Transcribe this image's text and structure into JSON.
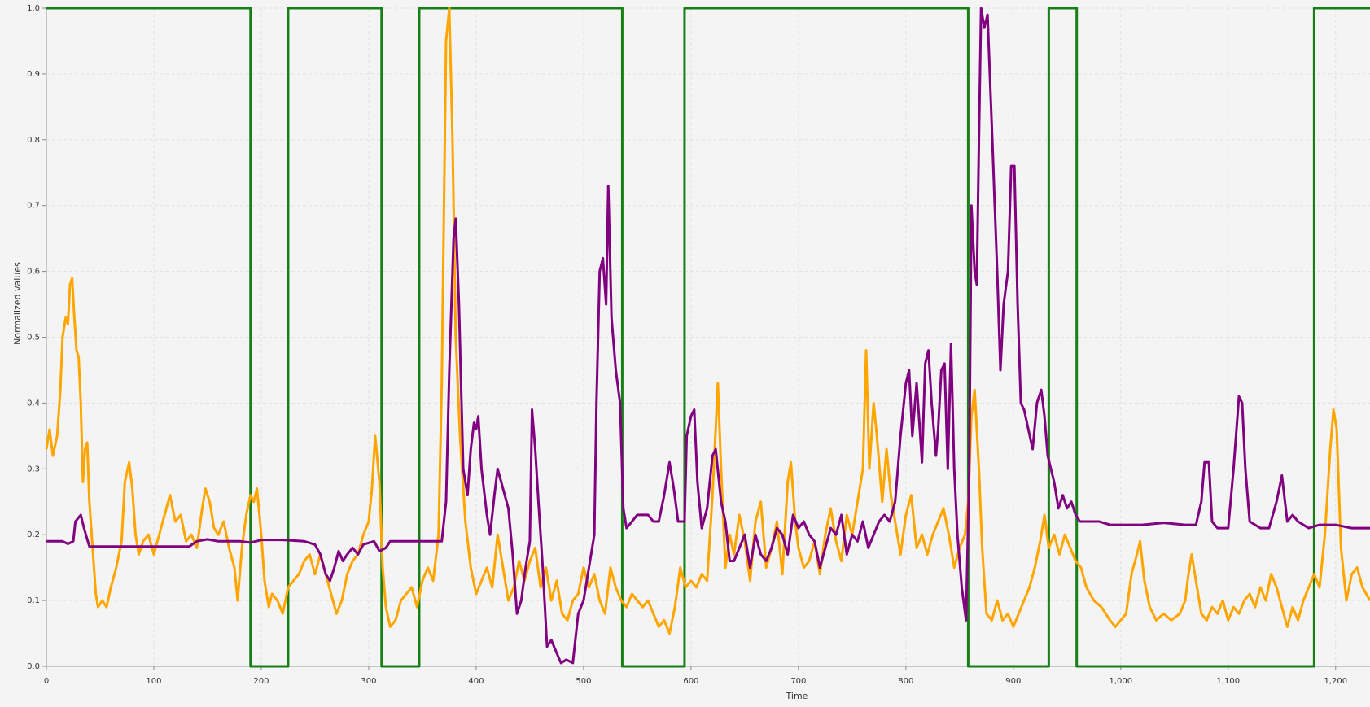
{
  "chart_data": {
    "type": "line",
    "xlabel": "Time",
    "ylabel": "Normalized values",
    "xlim": [
      0,
      1232
    ],
    "ylim": [
      0,
      1
    ],
    "xticks": [
      0,
      100,
      200,
      300,
      400,
      500,
      600,
      700,
      800,
      900,
      {
        "value": 1000,
        "label": "1,000"
      },
      {
        "value": 1100,
        "label": "1,100"
      },
      {
        "value": 1200,
        "label": "1,200"
      }
    ],
    "yticks": [
      {
        "value": 0,
        "label": "0.0"
      },
      0.1,
      0.2,
      0.3,
      0.4,
      0.5,
      0.6,
      0.7,
      0.8,
      0.9,
      {
        "value": 1,
        "label": "1.0"
      }
    ],
    "grid": true,
    "series": [
      {
        "color": "#168016",
        "x": [
          0,
          190,
          190,
          225,
          225,
          312,
          312,
          347,
          347,
          536,
          536,
          594,
          594,
          858,
          858,
          933,
          933,
          959,
          959,
          1180,
          1180,
          1232
        ],
        "values": [
          1,
          1,
          0,
          0,
          1,
          1,
          0,
          0,
          1,
          1,
          0,
          0,
          1,
          1,
          0,
          0,
          1,
          1,
          0,
          0,
          1,
          1
        ]
      },
      {
        "color": "#ffa500",
        "x": [
          0,
          3,
          6,
          10,
          13,
          15,
          18,
          20,
          22,
          24,
          26,
          28,
          30,
          32,
          34,
          36,
          38,
          40,
          43,
          46,
          48,
          52,
          56,
          60,
          65,
          70,
          73,
          77,
          80,
          83,
          86,
          90,
          95,
          100,
          105,
          110,
          115,
          120,
          125,
          130,
          135,
          140,
          145,
          148,
          152,
          156,
          160,
          165,
          170,
          175,
          178,
          182,
          186,
          190,
          193,
          196,
          200,
          203,
          207,
          210,
          215,
          220,
          225,
          230,
          235,
          240,
          245,
          250,
          255,
          260,
          265,
          270,
          275,
          280,
          285,
          290,
          295,
          300,
          303,
          306,
          310,
          313,
          316,
          320,
          325,
          330,
          335,
          340,
          345,
          350,
          355,
          360,
          365,
          368,
          372,
          375,
          378,
          381,
          385,
          390,
          395,
          400,
          405,
          410,
          415,
          420,
          425,
          430,
          435,
          440,
          445,
          450,
          455,
          460,
          465,
          470,
          475,
          480,
          485,
          490,
          495,
          500,
          505,
          510,
          515,
          520,
          525,
          530,
          535,
          540,
          545,
          550,
          555,
          560,
          565,
          570,
          575,
          580,
          585,
          590,
          595,
          600,
          605,
          610,
          615,
          620,
          625,
          628,
          632,
          636,
          640,
          645,
          650,
          655,
          660,
          665,
          670,
          675,
          680,
          685,
          690,
          693,
          697,
          700,
          705,
          710,
          715,
          720,
          725,
          730,
          735,
          740,
          745,
          750,
          755,
          760,
          763,
          766,
          770,
          773,
          778,
          782,
          786,
          790,
          795,
          800,
          805,
          810,
          815,
          820,
          825,
          830,
          835,
          840,
          845,
          850,
          855,
          858,
          861,
          864,
          868,
          871,
          875,
          880,
          885,
          890,
          895,
          900,
          905,
          910,
          915,
          920,
          925,
          929,
          933,
          938,
          943,
          948,
          953,
          958,
          963,
          968,
          975,
          982,
          990,
          995,
          1000,
          1005,
          1010,
          1015,
          1018,
          1022,
          1027,
          1033,
          1040,
          1047,
          1055,
          1060,
          1063,
          1066,
          1070,
          1075,
          1080,
          1085,
          1090,
          1095,
          1100,
          1105,
          1110,
          1115,
          1120,
          1125,
          1130,
          1135,
          1140,
          1145,
          1150,
          1155,
          1160,
          1165,
          1170,
          1175,
          1180,
          1185,
          1190,
          1195,
          1198,
          1201,
          1205,
          1210,
          1215,
          1220,
          1225,
          1232
        ],
        "values": [
          0.33,
          0.36,
          0.32,
          0.35,
          0.42,
          0.5,
          0.53,
          0.52,
          0.58,
          0.59,
          0.53,
          0.48,
          0.47,
          0.4,
          0.28,
          0.33,
          0.34,
          0.25,
          0.18,
          0.11,
          0.09,
          0.1,
          0.09,
          0.12,
          0.15,
          0.19,
          0.28,
          0.31,
          0.27,
          0.2,
          0.17,
          0.19,
          0.2,
          0.17,
          0.2,
          0.23,
          0.26,
          0.22,
          0.23,
          0.19,
          0.2,
          0.18,
          0.24,
          0.27,
          0.25,
          0.21,
          0.2,
          0.22,
          0.18,
          0.15,
          0.1,
          0.18,
          0.23,
          0.26,
          0.25,
          0.27,
          0.2,
          0.13,
          0.09,
          0.11,
          0.1,
          0.08,
          0.12,
          0.13,
          0.14,
          0.16,
          0.17,
          0.14,
          0.17,
          0.14,
          0.11,
          0.08,
          0.1,
          0.14,
          0.16,
          0.17,
          0.2,
          0.22,
          0.27,
          0.35,
          0.28,
          0.15,
          0.09,
          0.06,
          0.07,
          0.1,
          0.11,
          0.12,
          0.09,
          0.13,
          0.15,
          0.13,
          0.2,
          0.43,
          0.95,
          1.0,
          0.8,
          0.5,
          0.35,
          0.22,
          0.15,
          0.11,
          0.13,
          0.15,
          0.12,
          0.2,
          0.15,
          0.1,
          0.12,
          0.16,
          0.13,
          0.16,
          0.18,
          0.12,
          0.15,
          0.1,
          0.13,
          0.08,
          0.07,
          0.1,
          0.11,
          0.15,
          0.12,
          0.14,
          0.1,
          0.08,
          0.15,
          0.12,
          0.1,
          0.09,
          0.11,
          0.1,
          0.09,
          0.1,
          0.08,
          0.06,
          0.07,
          0.05,
          0.09,
          0.15,
          0.12,
          0.13,
          0.12,
          0.14,
          0.13,
          0.26,
          0.43,
          0.3,
          0.15,
          0.2,
          0.17,
          0.23,
          0.19,
          0.13,
          0.22,
          0.25,
          0.15,
          0.18,
          0.22,
          0.14,
          0.28,
          0.31,
          0.22,
          0.18,
          0.15,
          0.16,
          0.19,
          0.14,
          0.2,
          0.24,
          0.19,
          0.16,
          0.23,
          0.2,
          0.25,
          0.3,
          0.48,
          0.3,
          0.4,
          0.35,
          0.25,
          0.33,
          0.26,
          0.22,
          0.17,
          0.23,
          0.26,
          0.18,
          0.2,
          0.17,
          0.2,
          0.22,
          0.24,
          0.2,
          0.15,
          0.18,
          0.2,
          0.25,
          0.38,
          0.42,
          0.3,
          0.18,
          0.08,
          0.07,
          0.1,
          0.07,
          0.08,
          0.06,
          0.08,
          0.1,
          0.12,
          0.15,
          0.19,
          0.23,
          0.18,
          0.2,
          0.17,
          0.2,
          0.18,
          0.16,
          0.15,
          0.12,
          0.1,
          0.09,
          0.07,
          0.06,
          0.07,
          0.08,
          0.14,
          0.17,
          0.19,
          0.13,
          0.09,
          0.07,
          0.08,
          0.07,
          0.08,
          0.1,
          0.14,
          0.17,
          0.13,
          0.08,
          0.07,
          0.09,
          0.08,
          0.1,
          0.07,
          0.09,
          0.08,
          0.1,
          0.11,
          0.09,
          0.12,
          0.1,
          0.14,
          0.12,
          0.09,
          0.06,
          0.09,
          0.07,
          0.1,
          0.12,
          0.14,
          0.12,
          0.2,
          0.33,
          0.39,
          0.36,
          0.18,
          0.1,
          0.14,
          0.15,
          0.12,
          0.1
        ]
      },
      {
        "color": "#800080",
        "x": [
          0,
          15,
          20,
          25,
          27,
          32,
          35,
          40,
          100,
          133,
          140,
          150,
          160,
          180,
          190,
          200,
          220,
          240,
          250,
          255,
          260,
          264,
          268,
          272,
          276,
          280,
          285,
          290,
          295,
          305,
          310,
          316,
          320,
          345,
          360,
          368,
          372,
          375,
          379,
          381,
          384,
          388,
          392,
          395,
          398,
          400,
          402,
          405,
          410,
          413,
          417,
          420,
          425,
          430,
          434,
          438,
          442,
          446,
          450,
          452,
          455,
          458,
          462,
          466,
          470,
          475,
          479,
          484,
          490,
          495,
          500,
          505,
          510,
          512,
          515,
          518,
          521,
          523,
          526,
          530,
          534,
          537,
          540,
          545,
          550,
          560,
          565,
          570,
          575,
          580,
          584,
          588,
          592,
          594,
          596,
          600,
          603,
          606,
          610,
          615,
          620,
          623,
          628,
          632,
          636,
          640,
          645,
          650,
          655,
          660,
          665,
          670,
          675,
          680,
          685,
          690,
          695,
          700,
          705,
          710,
          715,
          720,
          725,
          730,
          735,
          740,
          745,
          750,
          755,
          760,
          765,
          770,
          775,
          780,
          785,
          790,
          795,
          800,
          803,
          806,
          810,
          813,
          815,
          818,
          821,
          824,
          828,
          830,
          833,
          836,
          839,
          842,
          845,
          848,
          852,
          856,
          859,
          861,
          864,
          866,
          868,
          870,
          873,
          876,
          880,
          885,
          888,
          891,
          895,
          898,
          901,
          904,
          907,
          910,
          914,
          918,
          922,
          926,
          929,
          932,
          935,
          938,
          942,
          946,
          950,
          954,
          958,
          962,
          970,
          980,
          990,
          1000,
          1020,
          1040,
          1060,
          1070,
          1075,
          1078,
          1082,
          1085,
          1090,
          1100,
          1105,
          1110,
          1113,
          1116,
          1120,
          1130,
          1138,
          1145,
          1150,
          1155,
          1160,
          1165,
          1175,
          1185,
          1200,
          1215,
          1232
        ],
        "values": [
          0.19,
          0.19,
          0.186,
          0.19,
          0.22,
          0.23,
          0.21,
          0.182,
          0.182,
          0.182,
          0.19,
          0.193,
          0.19,
          0.19,
          0.188,
          0.192,
          0.192,
          0.19,
          0.185,
          0.17,
          0.14,
          0.13,
          0.15,
          0.175,
          0.16,
          0.17,
          0.18,
          0.17,
          0.185,
          0.19,
          0.175,
          0.18,
          0.19,
          0.19,
          0.19,
          0.19,
          0.25,
          0.45,
          0.65,
          0.68,
          0.55,
          0.3,
          0.26,
          0.33,
          0.37,
          0.36,
          0.38,
          0.3,
          0.23,
          0.2,
          0.26,
          0.3,
          0.27,
          0.24,
          0.17,
          0.08,
          0.1,
          0.15,
          0.19,
          0.39,
          0.33,
          0.25,
          0.15,
          0.03,
          0.04,
          0.02,
          0.005,
          0.01,
          0.005,
          0.08,
          0.1,
          0.15,
          0.2,
          0.4,
          0.6,
          0.62,
          0.55,
          0.73,
          0.53,
          0.45,
          0.4,
          0.24,
          0.21,
          0.22,
          0.23,
          0.23,
          0.22,
          0.22,
          0.26,
          0.31,
          0.27,
          0.22,
          0.22,
          0.22,
          0.35,
          0.38,
          0.39,
          0.28,
          0.21,
          0.24,
          0.32,
          0.33,
          0.25,
          0.22,
          0.16,
          0.16,
          0.18,
          0.2,
          0.15,
          0.2,
          0.17,
          0.16,
          0.18,
          0.21,
          0.2,
          0.17,
          0.23,
          0.21,
          0.22,
          0.2,
          0.19,
          0.15,
          0.18,
          0.21,
          0.2,
          0.23,
          0.17,
          0.2,
          0.19,
          0.22,
          0.18,
          0.2,
          0.22,
          0.23,
          0.22,
          0.25,
          0.35,
          0.43,
          0.45,
          0.35,
          0.43,
          0.36,
          0.31,
          0.46,
          0.48,
          0.4,
          0.32,
          0.36,
          0.45,
          0.46,
          0.3,
          0.49,
          0.3,
          0.2,
          0.12,
          0.07,
          0.3,
          0.7,
          0.6,
          0.58,
          0.8,
          1.0,
          0.97,
          0.99,
          0.82,
          0.6,
          0.45,
          0.55,
          0.6,
          0.76,
          0.76,
          0.55,
          0.4,
          0.39,
          0.36,
          0.33,
          0.4,
          0.42,
          0.38,
          0.32,
          0.3,
          0.28,
          0.24,
          0.26,
          0.24,
          0.25,
          0.23,
          0.22,
          0.22,
          0.22,
          0.215,
          0.215,
          0.215,
          0.218,
          0.215,
          0.215,
          0.25,
          0.31,
          0.31,
          0.22,
          0.21,
          0.21,
          0.3,
          0.41,
          0.4,
          0.3,
          0.22,
          0.21,
          0.21,
          0.25,
          0.29,
          0.22,
          0.23,
          0.22,
          0.21,
          0.215,
          0.215,
          0.21,
          0.21
        ]
      }
    ]
  }
}
